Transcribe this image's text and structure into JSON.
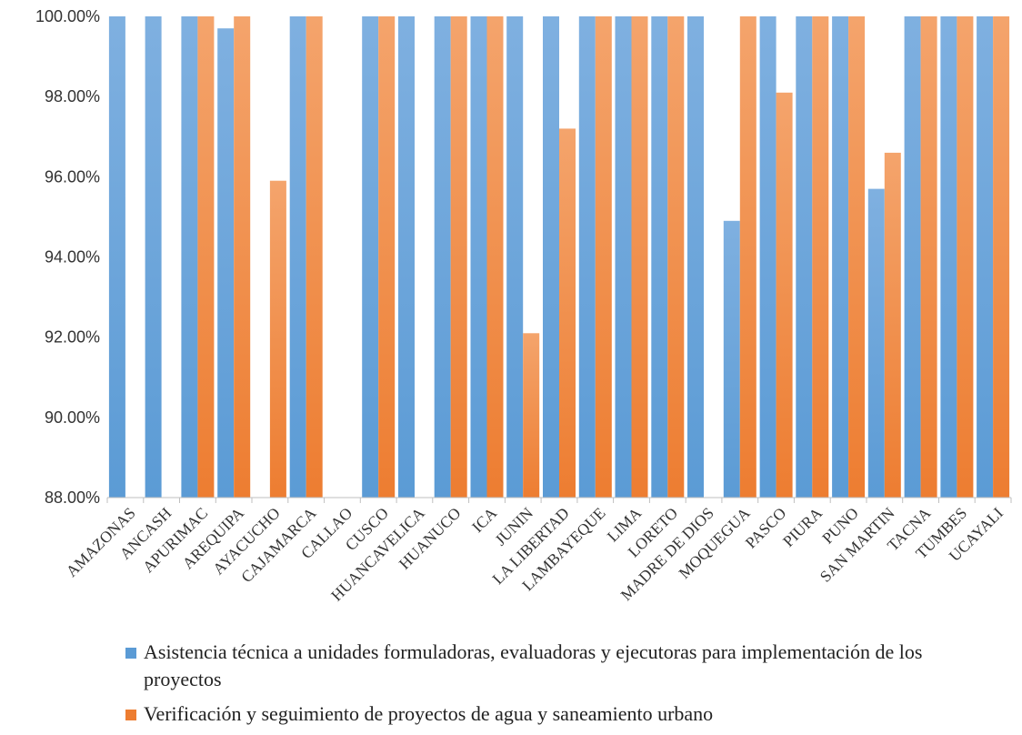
{
  "chart_data": {
    "type": "bar",
    "categories": [
      "AMAZONAS",
      "ANCASH",
      "APURIMAC",
      "AREQUIPA",
      "AYACUCHO",
      "CAJAMARCA",
      "CALLAO",
      "CUSCO",
      "HUANCAVELICA",
      "HUANUCO",
      "ICA",
      "JUNIN",
      "LA LIBERTAD",
      "LAMBAYEQUE",
      "LIMA",
      "LORETO",
      "MADRE DE DIOS",
      "MOQUEGUA",
      "PASCO",
      "PIURA",
      "PUNO",
      "SAN MARTIN",
      "TACNA",
      "TUMBES",
      "UCAYALI"
    ],
    "series": [
      {
        "name": "Asistencia técnica a unidades formuladoras, evaluadoras y ejecutoras para implementación de los proyectos",
        "color": "#5b9bd5",
        "values": [
          100,
          100,
          100,
          99.7,
          null,
          100,
          null,
          100,
          100,
          100,
          100,
          100,
          100,
          100,
          100,
          100,
          100,
          94.9,
          100,
          100,
          100,
          95.7,
          100,
          100,
          100
        ]
      },
      {
        "name": "Verificación y seguimiento de proyectos de agua y saneamiento urbano",
        "color": "#ed7d31",
        "values": [
          null,
          null,
          100,
          100,
          95.9,
          100,
          null,
          100,
          null,
          100,
          100,
          92.1,
          97.2,
          100,
          100,
          100,
          null,
          100,
          98.1,
          100,
          100,
          96.6,
          100,
          100,
          100
        ]
      }
    ],
    "yticks": [
      "88.00%",
      "90.00%",
      "92.00%",
      "94.00%",
      "96.00%",
      "98.00%",
      "100.00%"
    ],
    "ylim": [
      88,
      100
    ],
    "legend_position": "bottom",
    "grid": false
  }
}
